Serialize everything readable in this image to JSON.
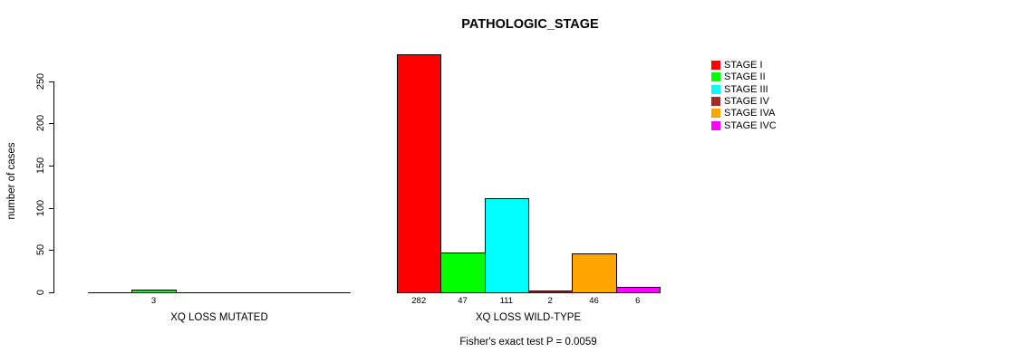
{
  "chart_data": {
    "type": "bar",
    "title": "PATHOLOGIC_STAGE",
    "ylabel": "number of cases",
    "xlabel": "",
    "ylim": [
      0,
      283
    ],
    "yticks": [
      0,
      50,
      100,
      150,
      200,
      250
    ],
    "grid": false,
    "series_names": [
      "STAGE I",
      "STAGE II",
      "STAGE III",
      "STAGE IV",
      "STAGE IVA",
      "STAGE IVC"
    ],
    "series_colors": [
      "#ff0000",
      "#00ff00",
      "#00ffff",
      "#a52a2a",
      "#ffa500",
      "#ff00ff"
    ],
    "groups": [
      {
        "label": "XQ LOSS MUTATED",
        "values": [
          0,
          3,
          0,
          0,
          0,
          0
        ],
        "bar_labels": [
          "",
          "3",
          "",
          "",
          "",
          ""
        ]
      },
      {
        "label": "XQ LOSS WILD-TYPE",
        "values": [
          282,
          47,
          111,
          2,
          46,
          6
        ],
        "bar_labels": [
          "282",
          "47",
          "111",
          "2",
          "46",
          "6"
        ]
      }
    ],
    "legend": {
      "position": "right",
      "entries": [
        {
          "label": "STAGE I",
          "color": "#ff0000"
        },
        {
          "label": "STAGE II",
          "color": "#00ff00"
        },
        {
          "label": "STAGE III",
          "color": "#00ffff"
        },
        {
          "label": "STAGE IV",
          "color": "#a52a2a"
        },
        {
          "label": "STAGE IVA",
          "color": "#ffa500"
        },
        {
          "label": "STAGE IVC",
          "color": "#ff00ff"
        }
      ]
    },
    "annotation": "Fisher's exact test P = 0.0059"
  }
}
